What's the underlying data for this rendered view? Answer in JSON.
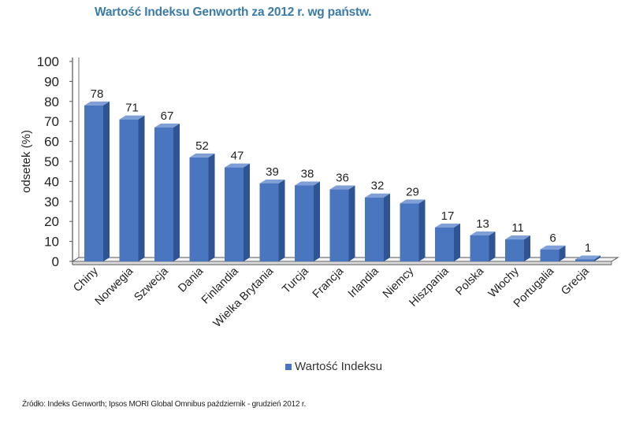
{
  "chart_data": {
    "type": "bar",
    "title": "Wartość Indeksu Genworth za 2012 r. wg państw.",
    "ylabel": "odsetek (%)",
    "xlabel": "",
    "ylim": [
      0,
      100
    ],
    "yticks": [
      "0",
      "10",
      "20",
      "30",
      "40",
      "50",
      "60",
      "70",
      "80",
      "90",
      "100"
    ],
    "categories": [
      "Chiny",
      "Norwegia",
      "Szwecja",
      "Dania",
      "Finlandia",
      "Wielka Brytania",
      "Turcja",
      "Francja",
      "Irlandia",
      "Niemcy",
      "Hiszpania",
      "Polska",
      "Włochy",
      "Portugalia",
      "Grecja"
    ],
    "series": [
      {
        "name": "Wartość Indeksu",
        "values": [
          78,
          71,
          67,
          52,
          47,
          39,
          38,
          36,
          32,
          29,
          17,
          13,
          11,
          6,
          1
        ]
      }
    ],
    "data_labels": [
      "78",
      "71",
      "67",
      "52",
      "47",
      "39",
      "38",
      "36",
      "32",
      "29",
      "17",
      "13",
      "11",
      "6",
      "1"
    ],
    "legend_position": "bottom",
    "grid": false,
    "colors": {
      "bar_front": "#4a76c0",
      "bar_side": "#2f5493",
      "bar_top": "#7f9fd6",
      "title": "#3a7ba8"
    }
  },
  "footer": {
    "source": "Źródło: Indeks Genworth; Ipsos MORI Global Omnibus październik - grudzień 2012 r."
  }
}
